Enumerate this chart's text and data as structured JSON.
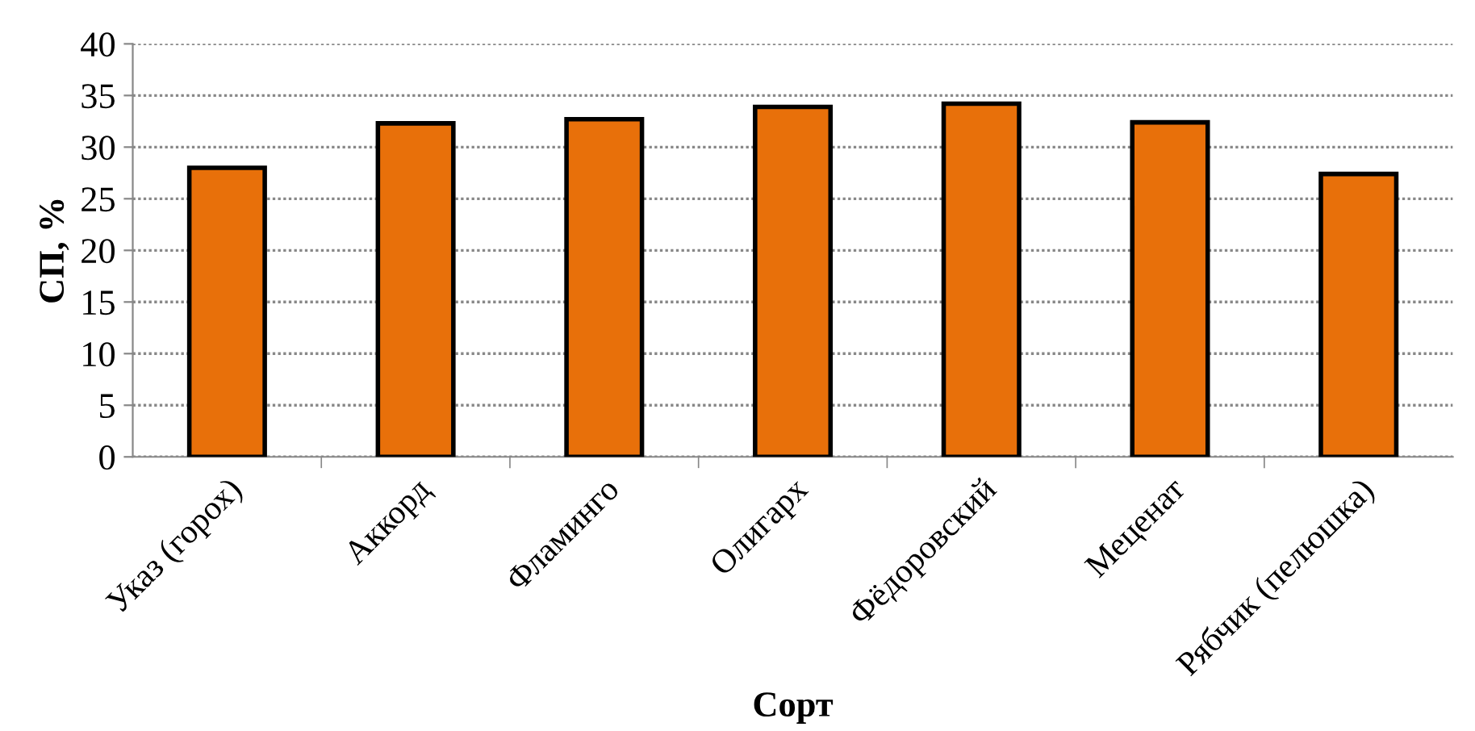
{
  "chart_data": {
    "type": "bar",
    "xlabel": "Сорт",
    "ylabel": "СП, %",
    "categories": [
      "Указ (горох)",
      "Аккорд",
      "Фламинго",
      "Олигарх",
      "Фёдоровский",
      "Меценат",
      "Рябчик (пелюшка)"
    ],
    "values": [
      28.0,
      32.3,
      32.7,
      33.9,
      34.2,
      32.4,
      27.4
    ],
    "color": "#e8700a",
    "ylim": [
      0,
      40
    ],
    "yticks": [
      0,
      5,
      10,
      15,
      20,
      25,
      30,
      35,
      40
    ],
    "grid": "y"
  }
}
